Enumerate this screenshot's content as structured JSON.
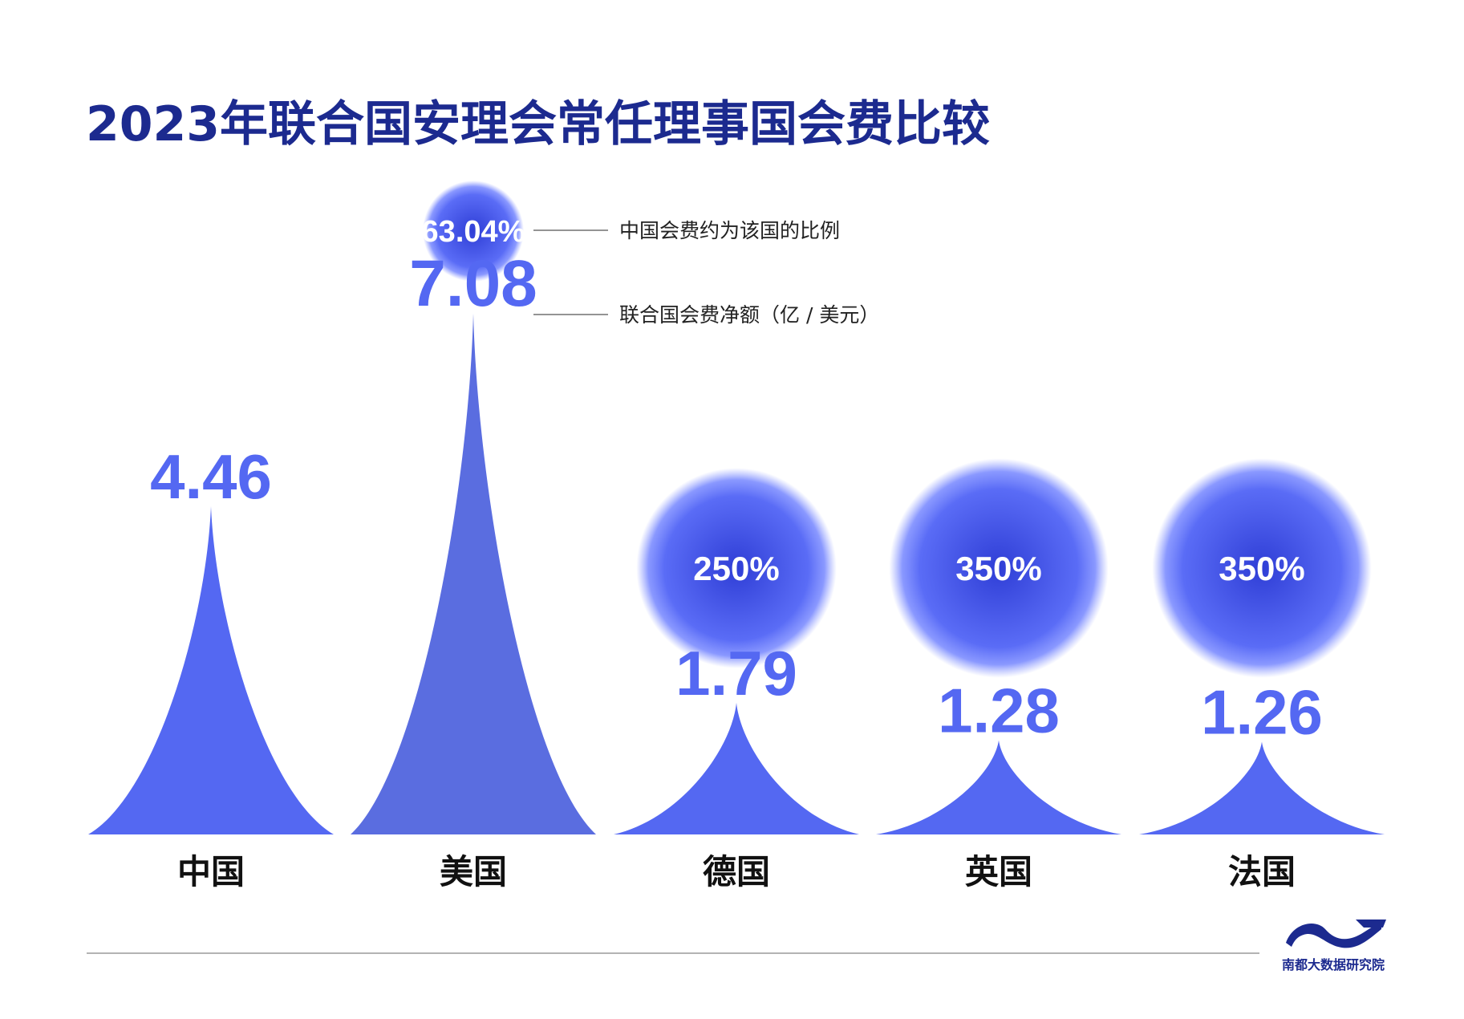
{
  "title": "2023年联合国安理会常任理事国会费比较",
  "annotations": {
    "ratio_note": "中国会费约为该国的比例",
    "amount_note": "联合国会费净额（亿 / 美元）"
  },
  "logo": {
    "icon": "wave-logo-icon",
    "text": "南都大数据研究院"
  },
  "colors": {
    "title": "#1c2a8f",
    "peak_light": "#5468f2",
    "peak_dark": "#5a6de0",
    "bubble_center": "#3444d8",
    "bubble_edge": "#6f80ff",
    "divider": "#9a9a9a"
  },
  "chart_data": {
    "type": "bar",
    "title": "2023年联合国安理会常任理事国会费比较",
    "ylabel": "联合国会费净额（亿 / 美元）",
    "categories": [
      "中国",
      "美国",
      "德国",
      "英国",
      "法国"
    ],
    "series": [
      {
        "name": "联合国会费净额（亿 / 美元）",
        "values": [
          4.46,
          7.08,
          1.79,
          1.28,
          1.26
        ],
        "labels": [
          "4.46",
          "7.08",
          "1.79",
          "1.28",
          "1.26"
        ]
      },
      {
        "name": "中国会费约为该国的比例",
        "values": [
          null,
          63.04,
          250,
          350,
          350
        ],
        "labels": [
          "",
          "63.04%",
          "250%",
          "350%",
          "350%"
        ]
      }
    ]
  }
}
